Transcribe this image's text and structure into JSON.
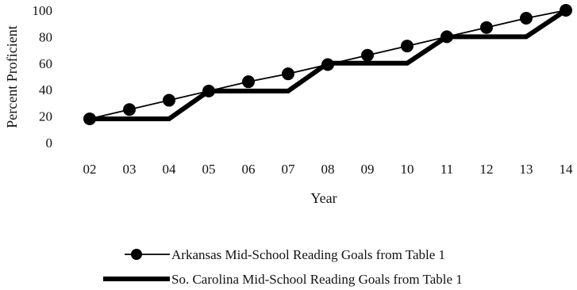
{
  "chart_data": {
    "type": "line",
    "title": "",
    "xlabel": "Year",
    "ylabel": "Percent Proficient",
    "categories": [
      "02",
      "03",
      "04",
      "05",
      "06",
      "07",
      "08",
      "09",
      "10",
      "11",
      "12",
      "13",
      "14"
    ],
    "ylim": [
      0,
      100
    ],
    "y_ticks": [
      "0",
      "20",
      "40",
      "60",
      "80",
      "100"
    ],
    "grid": false,
    "legend_position": "bottom",
    "series": [
      {
        "name": "Arkansas Mid-School Reading Goals from Table 1",
        "style": "thin line with circle markers",
        "color": "#000000",
        "values": [
          18,
          25,
          32,
          39,
          46,
          52,
          59,
          66,
          73,
          80,
          87,
          94,
          100
        ]
      },
      {
        "name": "So. Carolina  Mid-School Reading Goals from Table 1",
        "style": "thick line, step pattern",
        "color": "#000000",
        "values": [
          18,
          18,
          18,
          39,
          39,
          39,
          60,
          60,
          60,
          80,
          80,
          80,
          100
        ]
      }
    ]
  }
}
